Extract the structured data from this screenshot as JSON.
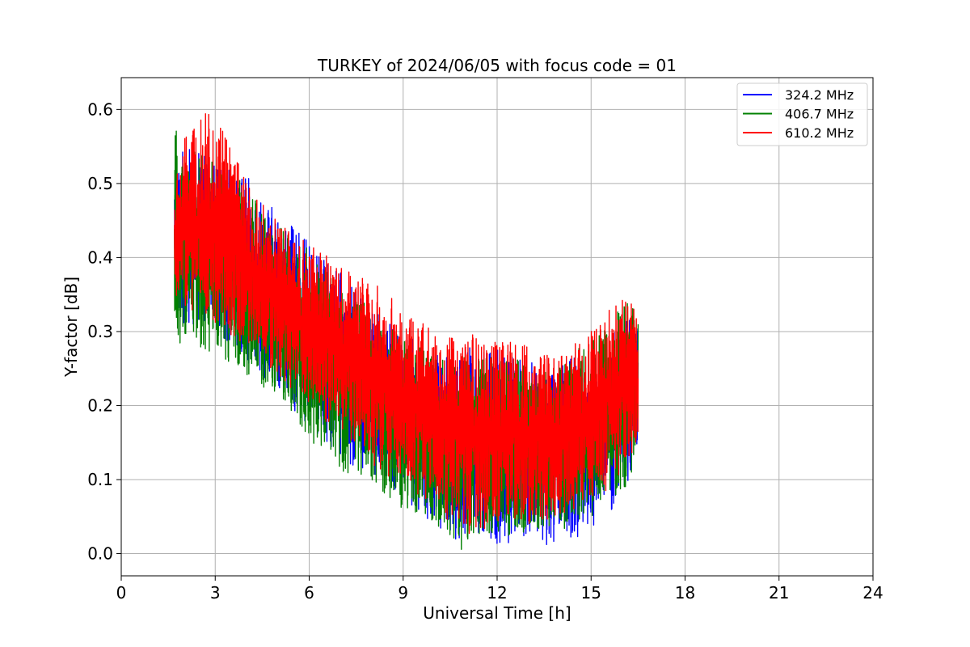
{
  "chart_data": {
    "type": "line",
    "title": "TURKEY of 2024/06/05 with focus code = 01",
    "xlabel": "Universal Time [h]",
    "ylabel": "Y-factor [dB]",
    "xlim": [
      0,
      24
    ],
    "ylim": [
      -0.03,
      0.643
    ],
    "xticks": [
      0,
      3,
      6,
      9,
      12,
      15,
      18,
      21,
      24
    ],
    "xtick_labels": [
      "0",
      "3",
      "6",
      "9",
      "12",
      "15",
      "18",
      "21",
      "24"
    ],
    "yticks": [
      0.0,
      0.1,
      0.2,
      0.3,
      0.4,
      0.5,
      0.6
    ],
    "ytick_labels": [
      "0.0",
      "0.1",
      "0.2",
      "0.3",
      "0.4",
      "0.5",
      "0.6"
    ],
    "grid": true,
    "legend_position": "top-right",
    "series": [
      {
        "name": "324.2 MHz",
        "color": "#0000ff",
        "envelope": {
          "x": [
            1.7,
            2.0,
            3.0,
            4.0,
            5.0,
            6.0,
            7.0,
            8.0,
            9.0,
            10.0,
            11.0,
            12.0,
            13.0,
            14.0,
            15.0,
            16.0,
            16.5
          ],
          "low": [
            0.32,
            0.31,
            0.3,
            0.26,
            0.22,
            0.17,
            0.13,
            0.1,
            0.07,
            0.04,
            0.01,
            0.01,
            0.01,
            0.01,
            0.03,
            0.07,
            0.13
          ],
          "high": [
            0.52,
            0.55,
            0.53,
            0.51,
            0.46,
            0.42,
            0.38,
            0.33,
            0.3,
            0.27,
            0.28,
            0.28,
            0.26,
            0.26,
            0.28,
            0.31,
            0.33
          ]
        }
      },
      {
        "name": "406.7 MHz",
        "color": "#008000",
        "envelope": {
          "x": [
            1.7,
            2.0,
            3.0,
            4.0,
            5.0,
            6.0,
            7.0,
            8.0,
            9.0,
            10.0,
            11.0,
            12.0,
            13.0,
            14.0,
            15.0,
            16.0,
            16.5
          ],
          "low": [
            0.29,
            0.28,
            0.27,
            0.24,
            0.21,
            0.15,
            0.11,
            0.09,
            0.06,
            0.04,
            0.0,
            0.02,
            0.03,
            0.03,
            0.05,
            0.08,
            0.12
          ],
          "high": [
            0.58,
            0.55,
            0.53,
            0.5,
            0.45,
            0.41,
            0.37,
            0.33,
            0.3,
            0.27,
            0.27,
            0.27,
            0.26,
            0.26,
            0.29,
            0.34,
            0.35
          ]
        }
      },
      {
        "name": "610.2 MHz",
        "color": "#ff0000",
        "envelope": {
          "x": [
            1.7,
            2.0,
            3.0,
            4.0,
            5.0,
            6.0,
            7.0,
            8.0,
            9.0,
            10.0,
            11.0,
            12.0,
            13.0,
            14.0,
            15.0,
            16.0,
            16.5
          ],
          "low": [
            0.34,
            0.33,
            0.31,
            0.28,
            0.24,
            0.2,
            0.16,
            0.12,
            0.09,
            0.06,
            0.02,
            0.04,
            0.04,
            0.05,
            0.07,
            0.1,
            0.14
          ],
          "high": [
            0.5,
            0.56,
            0.61,
            0.5,
            0.45,
            0.42,
            0.39,
            0.37,
            0.33,
            0.3,
            0.3,
            0.29,
            0.28,
            0.27,
            0.3,
            0.35,
            0.33
          ]
        }
      }
    ]
  }
}
